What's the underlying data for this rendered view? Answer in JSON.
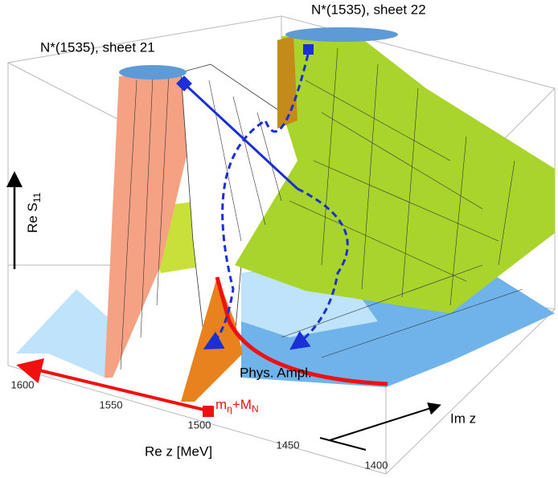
{
  "labels": {
    "sheet21": "N*(1535), sheet 21",
    "sheet22": "N*(1535), sheet 22",
    "re_s11": {
      "text": "Re S",
      "sub": "11"
    },
    "phys_ampl": "Phys. Ampl.",
    "threshold": {
      "parts": [
        "m",
        "η",
        "+M",
        "N"
      ]
    },
    "re_z": "Re z [MeV]",
    "im_z": "Im z"
  },
  "axes": {
    "re_z": {
      "ticks": [
        1600,
        1550,
        1500,
        1450,
        1400
      ]
    }
  }
}
